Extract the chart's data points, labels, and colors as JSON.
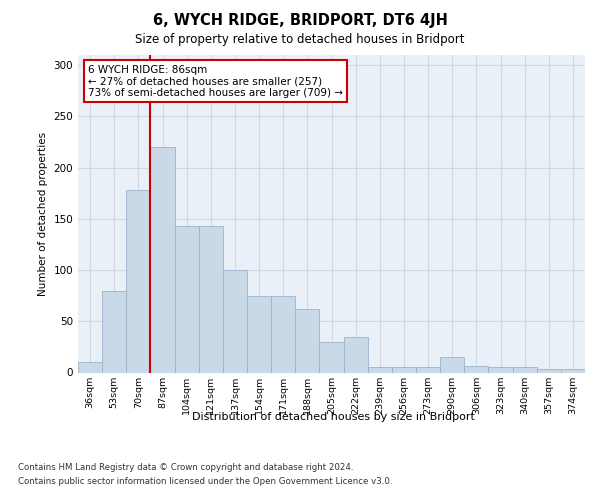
{
  "title": "6, WYCH RIDGE, BRIDPORT, DT6 4JH",
  "subtitle": "Size of property relative to detached houses in Bridport",
  "xlabel": "Distribution of detached houses by size in Bridport",
  "ylabel": "Number of detached properties",
  "categories": [
    "36sqm",
    "53sqm",
    "70sqm",
    "87sqm",
    "104sqm",
    "121sqm",
    "137sqm",
    "154sqm",
    "171sqm",
    "188sqm",
    "205sqm",
    "222sqm",
    "239sqm",
    "256sqm",
    "273sqm",
    "290sqm",
    "306sqm",
    "323sqm",
    "340sqm",
    "357sqm",
    "374sqm"
  ],
  "values": [
    10,
    80,
    178,
    220,
    143,
    143,
    100,
    75,
    75,
    62,
    30,
    35,
    5,
    5,
    5,
    15,
    6,
    5,
    5,
    3,
    3
  ],
  "bar_color": "#c9d9e8",
  "bar_edgecolor": "#9ab4cc",
  "property_line_color": "#cc0000",
  "annotation_text": "6 WYCH RIDGE: 86sqm\n← 27% of detached houses are smaller (257)\n73% of semi-detached houses are larger (709) →",
  "annotation_box_color": "#ffffff",
  "annotation_box_edgecolor": "#cc0000",
  "ylim": [
    0,
    310
  ],
  "yticks": [
    0,
    50,
    100,
    150,
    200,
    250,
    300
  ],
  "grid_color": "#d0d8e4",
  "background_color": "#eaf0f8",
  "footer_line1": "Contains HM Land Registry data © Crown copyright and database right 2024.",
  "footer_line2": "Contains public sector information licensed under the Open Government Licence v3.0."
}
